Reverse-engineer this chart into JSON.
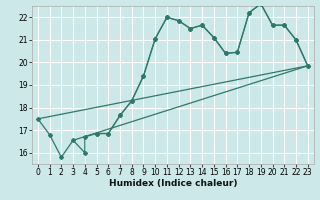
{
  "xlabel": "Humidex (Indice chaleur)",
  "bg_color": "#cce8e8",
  "grid_color": "#ffffff",
  "line_color": "#2d7a6a",
  "xlim": [
    -0.5,
    23.5
  ],
  "ylim": [
    15.5,
    22.5
  ],
  "xticks": [
    0,
    1,
    2,
    3,
    4,
    5,
    6,
    7,
    8,
    9,
    10,
    11,
    12,
    13,
    14,
    15,
    16,
    17,
    18,
    19,
    20,
    21,
    22,
    23
  ],
  "yticks": [
    16,
    17,
    18,
    19,
    20,
    21,
    22
  ],
  "curve1_x": [
    0,
    1,
    2,
    3,
    4,
    4,
    5,
    6,
    7,
    8,
    9,
    10,
    11,
    12,
    13,
    14,
    15,
    16,
    17,
    18,
    19,
    20,
    21,
    22,
    23
  ],
  "curve1_y": [
    17.5,
    16.8,
    15.8,
    16.55,
    16.0,
    16.7,
    16.85,
    16.85,
    17.65,
    18.3,
    19.4,
    21.05,
    22.0,
    21.85,
    21.5,
    21.65,
    21.1,
    20.4,
    20.45,
    22.2,
    22.6,
    21.65,
    21.65,
    21.0,
    19.85
  ],
  "curve2_x": [
    5,
    6,
    7,
    8,
    9,
    10,
    11,
    12,
    13,
    14,
    15,
    16,
    17,
    18,
    19,
    20,
    21,
    22,
    23
  ],
  "curve2_y": [
    16.85,
    16.85,
    17.65,
    18.3,
    19.4,
    21.05,
    22.0,
    21.85,
    21.5,
    21.65,
    21.1,
    20.4,
    20.45,
    22.2,
    22.6,
    21.65,
    21.65,
    21.0,
    19.85
  ],
  "line1_x": [
    0,
    23
  ],
  "line1_y": [
    17.5,
    19.85
  ],
  "line2_x": [
    3,
    23
  ],
  "line2_y": [
    16.55,
    19.85
  ]
}
